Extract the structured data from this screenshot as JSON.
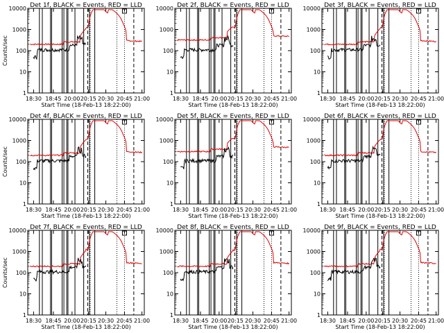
{
  "chart_data": {
    "type": "line",
    "xlabel": "Start Time (18-Feb-13 18:22:00)",
    "ylabel": "Counts/sec",
    "x_ticks": [
      "18:30",
      "18:45",
      "20:00",
      "20:15",
      "20:30",
      "20:45",
      "21:00"
    ],
    "y_ticks": [
      "1",
      "10",
      "100",
      "1000",
      "10000"
    ],
    "y_scale": "log",
    "ylim": [
      1,
      10000
    ],
    "xlim": [
      "18:22",
      "21:00"
    ],
    "colors": {
      "events": "#000000",
      "lld": "#e00000"
    },
    "panels": [
      {
        "title": "Det 1f, BLACK = Events, RED = LLD"
      },
      {
        "title": "Det 2f, BLACK = Events, RED = LLD"
      },
      {
        "title": "Det 3f, BLACK = Events, RED = LLD"
      },
      {
        "title": "Det 4f, BLACK = Events, RED = LLD"
      },
      {
        "title": "Det 5f, BLACK = Events, RED = LLD"
      },
      {
        "title": "Det 6f, BLACK = Events, RED = LLD"
      },
      {
        "title": "Det 7f, BLACK = Events, RED = LLD"
      },
      {
        "title": "Det 8f, BLACK = Events, RED = LLD"
      },
      {
        "title": "Det 9f, BLACK = Events, RED = LLD"
      }
    ]
  }
}
